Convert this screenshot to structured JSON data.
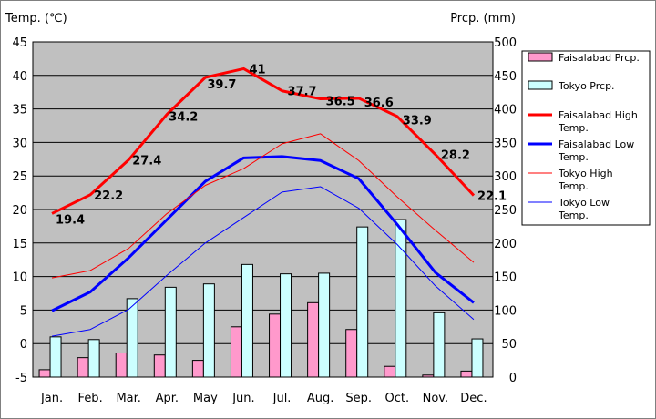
{
  "chart_data": {
    "type": "bar+line",
    "categories": [
      "Jan.",
      "Feb.",
      "Mar.",
      "Apr.",
      "May",
      "Jun.",
      "Jul.",
      "Aug.",
      "Sep.",
      "Oct.",
      "Nov.",
      "Dec."
    ],
    "left_axis": {
      "label": "Temp. (℃)",
      "range": [
        -5,
        45
      ],
      "ticks": [
        "45",
        "40",
        "35",
        "30",
        "25",
        "20",
        "15",
        "10",
        "5",
        "0",
        "-5"
      ]
    },
    "right_axis": {
      "label": "Prcp. (mm)",
      "range": [
        0,
        500
      ],
      "ticks": [
        "500",
        "450",
        "400",
        "350",
        "300",
        "250",
        "200",
        "150",
        "100",
        "50",
        "0"
      ]
    },
    "grid": true,
    "legend_position": "right",
    "bars": [
      {
        "name": "Faisalabad Prcp.",
        "color": "#ff99cc",
        "values": [
          11,
          29,
          36,
          33,
          25,
          75,
          94,
          111,
          71,
          16,
          3,
          9
        ]
      },
      {
        "name": "Tokyo Prcp.",
        "color": "#ccffff",
        "values": [
          60,
          56,
          117,
          134,
          139,
          168,
          154,
          155,
          224,
          235,
          96,
          57
        ]
      }
    ],
    "lines": [
      {
        "name": "Faisalabad High Temp.",
        "color": "#ff0000",
        "width": 3,
        "values": [
          19.4,
          22.2,
          27.4,
          34.2,
          39.7,
          41,
          37.7,
          36.5,
          36.6,
          33.9,
          28.2,
          22.1
        ],
        "labels": [
          "19.4",
          "22.2",
          "27.4",
          "34.2",
          "39.7",
          "41",
          "37.7",
          "36.5",
          "36.6",
          "33.9",
          "28.2",
          "22.1"
        ]
      },
      {
        "name": "Faisalabad Low Temp.",
        "color": "#0000ff",
        "width": 3,
        "values": [
          4.9,
          7.7,
          12.8,
          18.5,
          24.2,
          27.7,
          27.9,
          27.3,
          24.6,
          17.8,
          10.6,
          6.1
        ]
      },
      {
        "name": "Tokyo High Temp.",
        "color": "#ff0000",
        "width": 1,
        "values": [
          9.8,
          10.9,
          14.2,
          19.4,
          23.6,
          26.1,
          29.8,
          31.3,
          27.3,
          21.9,
          16.9,
          12.1
        ]
      },
      {
        "name": "Tokyo Low Temp.",
        "color": "#0000ff",
        "width": 1,
        "values": [
          1.1,
          2.1,
          5.1,
          10.2,
          15.0,
          18.8,
          22.6,
          23.4,
          20.2,
          14.8,
          8.6,
          3.6
        ]
      }
    ]
  }
}
